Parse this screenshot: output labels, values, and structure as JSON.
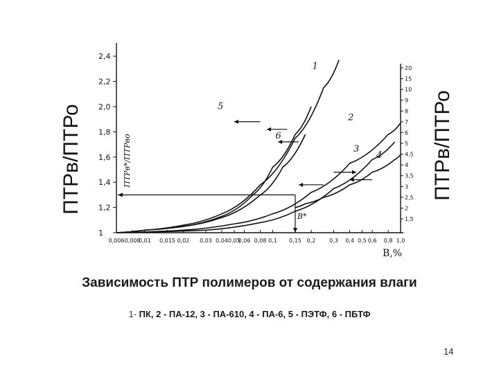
{
  "slide": {
    "title": "Зависимость ПТР  полимеров от содержания влаги",
    "legend_prefix": "1-",
    "legend_text": " ПК,  2 - ПА-12,  3 - ПА-610, 4 - ПА-6,  5 - ПЭТФ, 6 - ПБТФ",
    "page_number": "14"
  },
  "chart_data": {
    "type": "line",
    "title": "",
    "xlabel": "В,%",
    "ylabel_left": "ПТРв/ПТРо",
    "ylabel_right": "ПТРв/ПТРо",
    "ylabel_inner": "ПТРв*/ПТРво",
    "x_scale": "log",
    "x_ticks": [
      "0,006",
      "0,008",
      "0,01",
      "0,015",
      "0,02",
      "0,03",
      "0,04",
      "0,05",
      "0,06",
      "0,08",
      "0,1",
      "0,15",
      "0,2",
      "0,3",
      "0,4",
      "0,5",
      "0,6",
      "0,8",
      "1,0"
    ],
    "x_tick_values": [
      0.006,
      0.008,
      0.01,
      0.015,
      0.02,
      0.03,
      0.04,
      0.05,
      0.06,
      0.08,
      0.1,
      0.15,
      0.2,
      0.3,
      0.4,
      0.5,
      0.6,
      0.8,
      1.0
    ],
    "y_left_ticks": [
      "1",
      "1,2",
      "1,4",
      "1,6",
      "1,8",
      "2,0",
      "2,2",
      "2,4"
    ],
    "y_left_values": [
      1.0,
      1.2,
      1.4,
      1.6,
      1.8,
      2.0,
      2.2,
      2.4
    ],
    "y_left_range": [
      1.0,
      2.45
    ],
    "y_right_ticks": [
      "1,5",
      "2",
      "2,5",
      "3",
      "3,5",
      "4",
      "4,5",
      "5",
      "6",
      "7",
      "8",
      "9",
      "10",
      "15",
      "20"
    ],
    "series": [
      {
        "name": "1",
        "x": [
          0.006,
          0.01,
          0.02,
          0.04,
          0.08,
          0.15,
          0.25,
          0.33
        ],
        "y": [
          1.0,
          1.02,
          1.06,
          1.15,
          1.38,
          1.75,
          2.15,
          2.37
        ]
      },
      {
        "name": "2",
        "x": [
          0.006,
          0.02,
          0.05,
          0.1,
          0.2,
          0.4,
          0.8,
          1.0
        ],
        "y": [
          1.0,
          1.02,
          1.07,
          1.15,
          1.32,
          1.55,
          1.78,
          1.87
        ]
      },
      {
        "name": "3",
        "x": [
          0.006,
          0.03,
          0.08,
          0.15,
          0.3,
          0.6,
          0.9
        ],
        "y": [
          1.0,
          1.02,
          1.08,
          1.17,
          1.35,
          1.58,
          1.72
        ]
      },
      {
        "name": "4",
        "x": [
          0.15,
          0.18,
          0.25,
          0.4,
          0.6,
          0.9,
          1.0
        ],
        "y": [
          1.2,
          1.23,
          1.28,
          1.38,
          1.48,
          1.58,
          1.62
        ]
      },
      {
        "name": "5",
        "x": [
          0.006,
          0.01,
          0.02,
          0.04,
          0.07,
          0.1,
          0.15,
          0.2
        ],
        "y": [
          1.0,
          1.02,
          1.05,
          1.13,
          1.3,
          1.52,
          1.78,
          2.0
        ]
      },
      {
        "name": "6",
        "x": [
          0.006,
          0.01,
          0.02,
          0.04,
          0.08,
          0.12,
          0.18
        ],
        "y": [
          1.0,
          1.02,
          1.05,
          1.12,
          1.3,
          1.52,
          1.78
        ]
      }
    ],
    "annotations": {
      "marker_label": "В*",
      "marker_x": 0.15,
      "marker_y": 1.3
    },
    "grid": false,
    "legend": "none"
  }
}
